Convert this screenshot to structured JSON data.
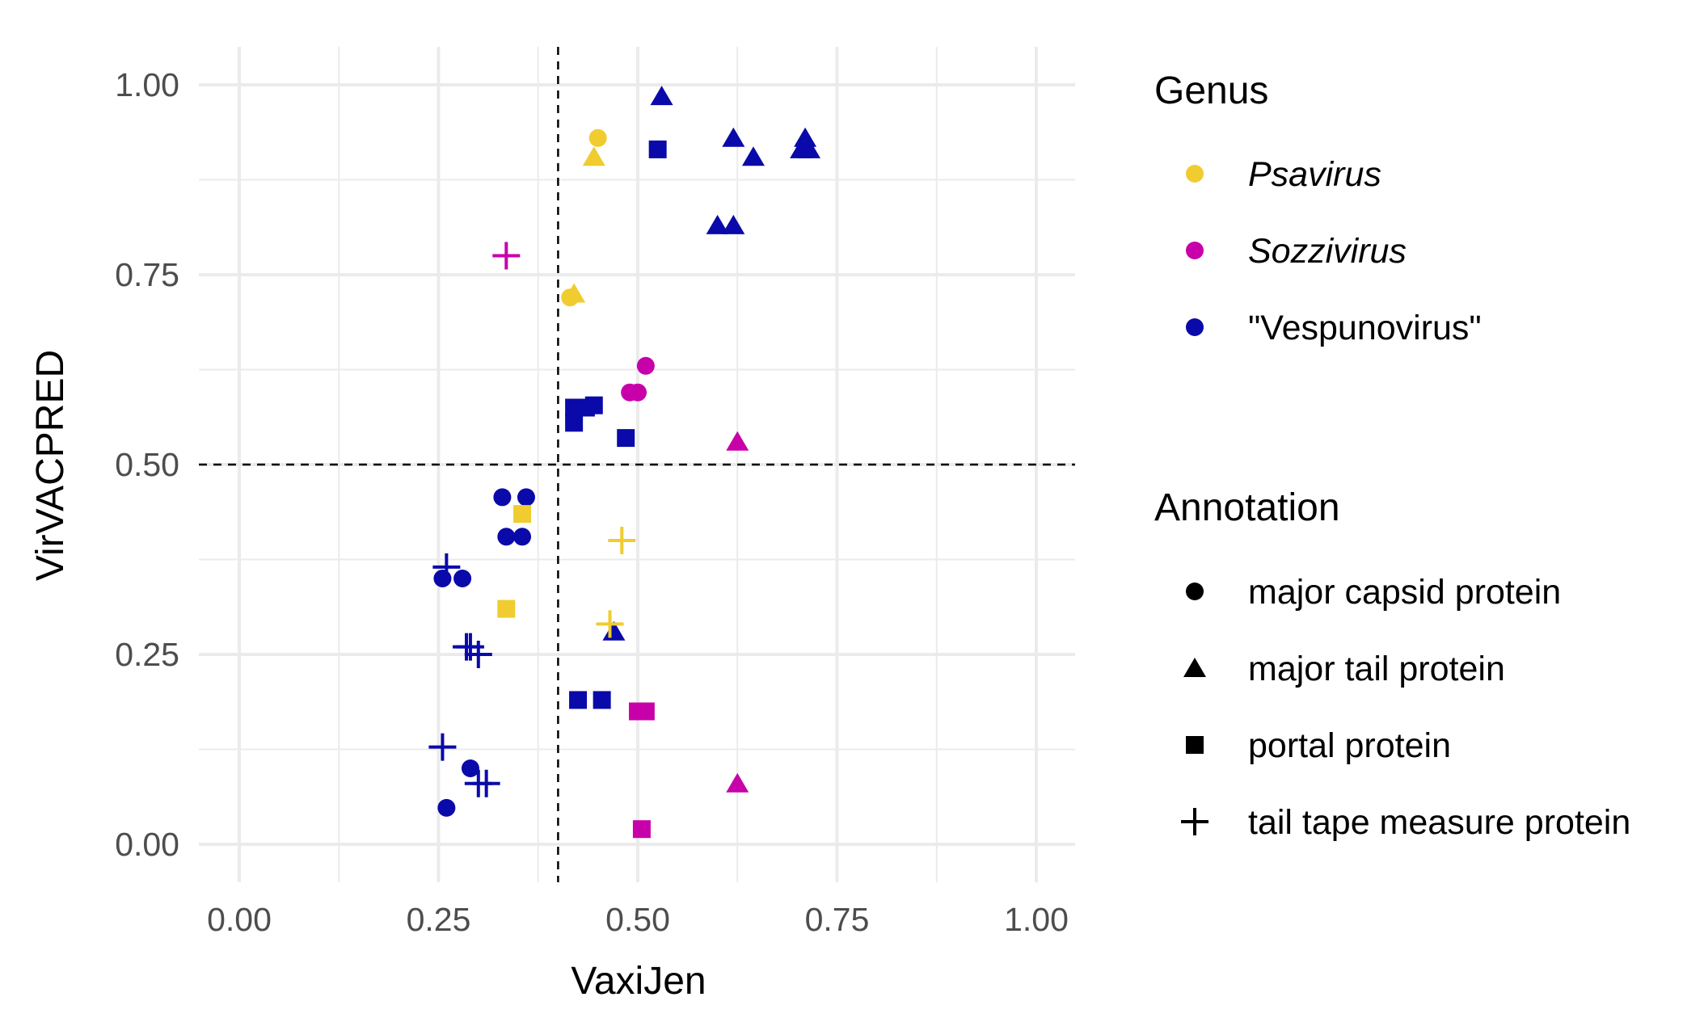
{
  "chart_data": {
    "type": "scatter",
    "xlabel": "VaxiJen",
    "ylabel": "VirVACPRED",
    "xlim": [
      -0.05,
      1.05
    ],
    "ylim": [
      -0.05,
      1.05
    ],
    "x_ticks": [
      "0.00",
      "0.25",
      "0.50",
      "0.75",
      "1.00"
    ],
    "y_ticks": [
      "0.00",
      "0.25",
      "0.50",
      "0.75",
      "1.00"
    ],
    "x_tick_values": [
      0,
      0.25,
      0.5,
      0.75,
      1
    ],
    "y_tick_values": [
      0,
      0.25,
      0.5,
      0.75,
      1
    ],
    "grid": true,
    "reference_lines": {
      "x": 0.4,
      "y": 0.5
    },
    "legend_position": "right",
    "legends": {
      "genus": {
        "title": "Genus",
        "entries": [
          {
            "key": "Psavirus",
            "label": "Psavirus",
            "color": "#F0CC30",
            "italic": true
          },
          {
            "key": "Sozzivirus",
            "label": "Sozzivirus",
            "color": "#C800AA",
            "italic": true
          },
          {
            "key": "Vespunovirus",
            "label": "\"Vespunovirus\"",
            "color": "#0A0AAA",
            "italic": false
          }
        ]
      },
      "annotation": {
        "title": "Annotation",
        "entries": [
          {
            "key": "capsid",
            "label": "major capsid protein",
            "shape": "circle"
          },
          {
            "key": "tail",
            "label": "major tail protein",
            "shape": "triangle"
          },
          {
            "key": "portal",
            "label": "portal protein",
            "shape": "square"
          },
          {
            "key": "tape",
            "label": "tail tape measure protein",
            "shape": "plus"
          }
        ]
      }
    },
    "points": [
      {
        "x": 0.45,
        "y": 0.93,
        "genus": "Psavirus",
        "annotation": "capsid"
      },
      {
        "x": 0.445,
        "y": 0.905,
        "genus": "Psavirus",
        "annotation": "tail"
      },
      {
        "x": 0.42,
        "y": 0.725,
        "genus": "Psavirus",
        "annotation": "tail"
      },
      {
        "x": 0.415,
        "y": 0.72,
        "genus": "Psavirus",
        "annotation": "capsid"
      },
      {
        "x": 0.355,
        "y": 0.435,
        "genus": "Psavirus",
        "annotation": "portal"
      },
      {
        "x": 0.335,
        "y": 0.31,
        "genus": "Psavirus",
        "annotation": "portal"
      },
      {
        "x": 0.48,
        "y": 0.4,
        "genus": "Psavirus",
        "annotation": "tape"
      },
      {
        "x": 0.465,
        "y": 0.29,
        "genus": "Psavirus",
        "annotation": "tape"
      },
      {
        "x": 0.335,
        "y": 0.775,
        "genus": "Sozzivirus",
        "annotation": "tape"
      },
      {
        "x": 0.51,
        "y": 0.63,
        "genus": "Sozzivirus",
        "annotation": "capsid"
      },
      {
        "x": 0.49,
        "y": 0.595,
        "genus": "Sozzivirus",
        "annotation": "capsid"
      },
      {
        "x": 0.5,
        "y": 0.595,
        "genus": "Sozzivirus",
        "annotation": "capsid"
      },
      {
        "x": 0.625,
        "y": 0.53,
        "genus": "Sozzivirus",
        "annotation": "tail"
      },
      {
        "x": 0.5,
        "y": 0.175,
        "genus": "Sozzivirus",
        "annotation": "portal"
      },
      {
        "x": 0.51,
        "y": 0.175,
        "genus": "Sozzivirus",
        "annotation": "portal"
      },
      {
        "x": 0.625,
        "y": 0.08,
        "genus": "Sozzivirus",
        "annotation": "tail"
      },
      {
        "x": 0.505,
        "y": 0.02,
        "genus": "Sozzivirus",
        "annotation": "portal"
      },
      {
        "x": 0.53,
        "y": 0.985,
        "genus": "Vespunovirus",
        "annotation": "tail"
      },
      {
        "x": 0.525,
        "y": 0.915,
        "genus": "Vespunovirus",
        "annotation": "portal"
      },
      {
        "x": 0.62,
        "y": 0.93,
        "genus": "Vespunovirus",
        "annotation": "tail"
      },
      {
        "x": 0.645,
        "y": 0.905,
        "genus": "Vespunovirus",
        "annotation": "tail"
      },
      {
        "x": 0.71,
        "y": 0.93,
        "genus": "Vespunovirus",
        "annotation": "tail"
      },
      {
        "x": 0.705,
        "y": 0.915,
        "genus": "Vespunovirus",
        "annotation": "tail"
      },
      {
        "x": 0.715,
        "y": 0.915,
        "genus": "Vespunovirus",
        "annotation": "tail"
      },
      {
        "x": 0.6,
        "y": 0.815,
        "genus": "Vespunovirus",
        "annotation": "tail"
      },
      {
        "x": 0.62,
        "y": 0.815,
        "genus": "Vespunovirus",
        "annotation": "tail"
      },
      {
        "x": 0.42,
        "y": 0.575,
        "genus": "Vespunovirus",
        "annotation": "portal"
      },
      {
        "x": 0.435,
        "y": 0.575,
        "genus": "Vespunovirus",
        "annotation": "portal"
      },
      {
        "x": 0.445,
        "y": 0.578,
        "genus": "Vespunovirus",
        "annotation": "portal"
      },
      {
        "x": 0.42,
        "y": 0.555,
        "genus": "Vespunovirus",
        "annotation": "portal"
      },
      {
        "x": 0.485,
        "y": 0.535,
        "genus": "Vespunovirus",
        "annotation": "portal"
      },
      {
        "x": 0.33,
        "y": 0.457,
        "genus": "Vespunovirus",
        "annotation": "capsid"
      },
      {
        "x": 0.36,
        "y": 0.457,
        "genus": "Vespunovirus",
        "annotation": "capsid"
      },
      {
        "x": 0.335,
        "y": 0.405,
        "genus": "Vespunovirus",
        "annotation": "capsid"
      },
      {
        "x": 0.355,
        "y": 0.405,
        "genus": "Vespunovirus",
        "annotation": "capsid"
      },
      {
        "x": 0.26,
        "y": 0.365,
        "genus": "Vespunovirus",
        "annotation": "tape"
      },
      {
        "x": 0.255,
        "y": 0.35,
        "genus": "Vespunovirus",
        "annotation": "capsid"
      },
      {
        "x": 0.28,
        "y": 0.35,
        "genus": "Vespunovirus",
        "annotation": "capsid"
      },
      {
        "x": 0.47,
        "y": 0.28,
        "genus": "Vespunovirus",
        "annotation": "tail"
      },
      {
        "x": 0.285,
        "y": 0.26,
        "genus": "Vespunovirus",
        "annotation": "tape"
      },
      {
        "x": 0.29,
        "y": 0.26,
        "genus": "Vespunovirus",
        "annotation": "tape"
      },
      {
        "x": 0.3,
        "y": 0.25,
        "genus": "Vespunovirus",
        "annotation": "tape"
      },
      {
        "x": 0.425,
        "y": 0.19,
        "genus": "Vespunovirus",
        "annotation": "portal"
      },
      {
        "x": 0.455,
        "y": 0.19,
        "genus": "Vespunovirus",
        "annotation": "portal"
      },
      {
        "x": 0.255,
        "y": 0.128,
        "genus": "Vespunovirus",
        "annotation": "tape"
      },
      {
        "x": 0.29,
        "y": 0.1,
        "genus": "Vespunovirus",
        "annotation": "capsid"
      },
      {
        "x": 0.3,
        "y": 0.08,
        "genus": "Vespunovirus",
        "annotation": "tape"
      },
      {
        "x": 0.31,
        "y": 0.08,
        "genus": "Vespunovirus",
        "annotation": "tape"
      },
      {
        "x": 0.26,
        "y": 0.048,
        "genus": "Vespunovirus",
        "annotation": "capsid"
      }
    ]
  }
}
